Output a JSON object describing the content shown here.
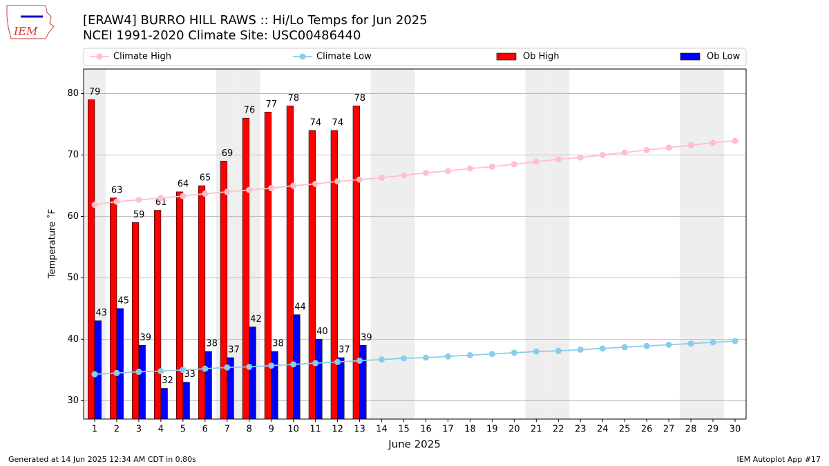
{
  "chart_data": {
    "type": "bar",
    "title": "[ERAW4] BURRO HILL RAWS :: Hi/Lo Temps for Jun 2025",
    "subtitle": "NCEI 1991-2020 Climate Site: USC00486440",
    "x_label": "June 2025",
    "y_label": "Temperature ˚F",
    "x": [
      1,
      2,
      3,
      4,
      5,
      6,
      7,
      8,
      9,
      10,
      11,
      12,
      13,
      14,
      15,
      16,
      17,
      18,
      19,
      20,
      21,
      22,
      23,
      24,
      25,
      26,
      27,
      28,
      29,
      30
    ],
    "xlim": [
      0.5,
      30.5
    ],
    "ylim": [
      27,
      84
    ],
    "yticks": [
      30,
      40,
      50,
      60,
      70,
      80
    ],
    "grid": true,
    "legend": "top",
    "shaded_days": [
      1,
      7,
      8,
      14,
      15,
      21,
      22,
      28,
      29
    ],
    "series": [
      {
        "name": "Climate High",
        "kind": "line",
        "color": "#ffc0cb",
        "values": [
          61.9,
          62.4,
          62.7,
          63.0,
          63.3,
          63.7,
          64.0,
          64.3,
          64.6,
          65.0,
          65.3,
          65.7,
          66.0,
          66.3,
          66.7,
          67.1,
          67.4,
          67.8,
          68.1,
          68.5,
          68.9,
          69.3,
          69.6,
          70.0,
          70.4,
          70.8,
          71.2,
          71.6,
          72.0,
          72.3
        ]
      },
      {
        "name": "Climate Low",
        "kind": "line",
        "color": "#87ceeb",
        "values": [
          34.3,
          34.5,
          34.7,
          34.8,
          35.0,
          35.2,
          35.4,
          35.5,
          35.7,
          35.9,
          36.1,
          36.3,
          36.5,
          36.7,
          36.9,
          37.0,
          37.2,
          37.4,
          37.6,
          37.8,
          38.0,
          38.1,
          38.3,
          38.5,
          38.7,
          38.9,
          39.1,
          39.3,
          39.5,
          39.7
        ]
      },
      {
        "name": "Ob High",
        "kind": "bar",
        "color": "#ff0000",
        "values": [
          79,
          63,
          59,
          61,
          64,
          65,
          69,
          76,
          77,
          78,
          74,
          74,
          78,
          null,
          null,
          null,
          null,
          null,
          null,
          null,
          null,
          null,
          null,
          null,
          null,
          null,
          null,
          null,
          null,
          null
        ]
      },
      {
        "name": "Ob Low",
        "kind": "bar",
        "color": "#0000ff",
        "values": [
          43,
          45,
          39,
          32,
          33,
          38,
          37,
          42,
          38,
          44,
          40,
          37,
          39,
          null,
          null,
          null,
          null,
          null,
          null,
          null,
          null,
          null,
          null,
          null,
          null,
          null,
          null,
          null,
          null,
          null
        ]
      }
    ]
  },
  "logo": "IEM",
  "footer": {
    "left": "Generated at 14 Jun 2025 12:34 AM CDT in 0.80s",
    "right": "IEM Autoplot App #17"
  }
}
